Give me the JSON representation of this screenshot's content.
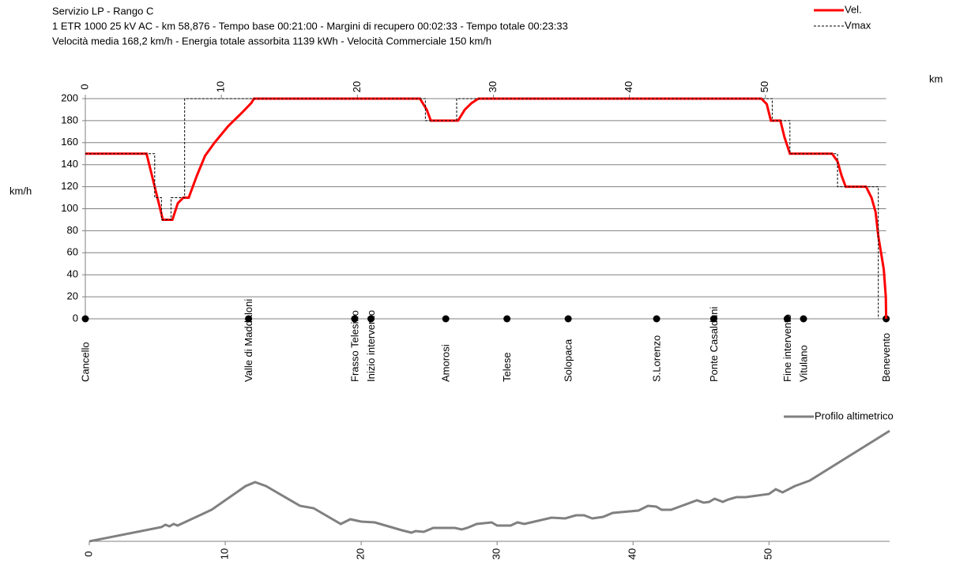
{
  "chart_data": [
    {
      "type": "line",
      "title": "Servizio LP - Rango C",
      "subtitle": [
        "1 ETR 1000 25 kV AC  -  km 58,876  -  Tempo base 00:21:00  -  Margini di recupero  00:02:33  -  Tempo totale 00:23:33",
        "Velocità media 168,2 km/h  -  Energia totale assorbita 1139  kWh  -  Velocità Commerciale 150 km/h"
      ],
      "xlabel": "km",
      "ylabel": "km/h",
      "xlim": [
        0,
        58.876
      ],
      "xticks": [
        0,
        10,
        20,
        30,
        40,
        50
      ],
      "ylim": [
        0,
        200
      ],
      "yticks": [
        0,
        20,
        40,
        60,
        80,
        100,
        120,
        140,
        160,
        180,
        200
      ],
      "grid": true,
      "legend": "top-right",
      "series": [
        {
          "name": "Vel.",
          "color": "#ff0000",
          "style": "solid",
          "x": [
            0,
            4.5,
            4.9,
            5.3,
            5.7,
            6.4,
            6.8,
            7.2,
            7.6,
            8.2,
            8.8,
            9.5,
            10.5,
            11.5,
            12.2,
            12.4,
            24.6,
            25.1,
            25.4,
            27.4,
            27.9,
            28.4,
            28.9,
            49.7,
            50.1,
            50.4,
            51.1,
            51.4,
            51.8,
            54.9,
            55.3,
            55.6,
            55.9,
            57.4,
            57.8,
            58.1,
            58.3,
            58.5,
            58.7,
            58.85,
            58.876
          ],
          "values": [
            150,
            150,
            130,
            110,
            90,
            90,
            105,
            110,
            110,
            130,
            148,
            160,
            175,
            187,
            196,
            200,
            200,
            190,
            180,
            180,
            190,
            196,
            200,
            200,
            195,
            180,
            180,
            165,
            150,
            150,
            143,
            130,
            120,
            120,
            110,
            97,
            75,
            60,
            45,
            20,
            0
          ]
        },
        {
          "name": "Vmax",
          "color": "#000000",
          "style": "dashed",
          "x": [
            0,
            5.1,
            5.1,
            5.6,
            5.6,
            6.3,
            6.3,
            7.3,
            7.3,
            25.0,
            25.0,
            27.3,
            27.3,
            50.5,
            50.5,
            51.8,
            51.8,
            55.3,
            55.3,
            58.3,
            58.3
          ],
          "values": [
            150,
            150,
            110,
            110,
            90,
            90,
            110,
            110,
            200,
            200,
            180,
            180,
            200,
            200,
            180,
            180,
            150,
            150,
            120,
            120,
            0
          ]
        }
      ],
      "stations": {
        "names": [
          "Cancello",
          "Valle di Maddaloni",
          "Frasso Telesino",
          "Inizio intervento",
          "Amorosi",
          "Telese",
          "Solopaca",
          "S.Lorenzo",
          "Ponte Casalduni",
          "Fine intervento",
          "Vitulano",
          "Benevento"
        ],
        "km": [
          0,
          12.0,
          19.8,
          21.0,
          26.5,
          31.0,
          35.5,
          42.0,
          46.2,
          51.6,
          52.8,
          58.876
        ]
      }
    },
    {
      "type": "line",
      "xlim": [
        0,
        58.876
      ],
      "xticks": [
        0,
        10,
        20,
        30,
        40,
        50
      ],
      "ylim": [
        0,
        150
      ],
      "legend": "top-right",
      "series": [
        {
          "name": "Profilo altimetrico",
          "color": "#808080",
          "style": "solid",
          "x": [
            0,
            5.3,
            5.6,
            5.9,
            6.2,
            6.5,
            7,
            9,
            11.5,
            12.2,
            13,
            15.5,
            16.5,
            18.5,
            19.2,
            20,
            21,
            22.2,
            23,
            23.7,
            24,
            24.6,
            25.3,
            26.9,
            27.4,
            27.8,
            28.5,
            29.6,
            30,
            31,
            31.5,
            32,
            32.5,
            33,
            34,
            35,
            35.8,
            36.4,
            37,
            37.8,
            38.5,
            40.4,
            41.1,
            41.7,
            42.1,
            42.8,
            44.7,
            45.2,
            45.6,
            46,
            46.6,
            47,
            47.6,
            48.3,
            50,
            50.5,
            51,
            51.9,
            53,
            58.876
          ],
          "values": [
            0,
            18,
            21,
            19,
            22,
            20,
            24,
            40,
            70,
            75,
            70,
            45,
            42,
            22,
            28,
            25,
            24,
            18,
            14,
            11,
            13,
            12,
            17,
            17,
            15,
            17,
            22,
            24,
            20,
            20,
            24,
            22,
            24,
            26,
            30,
            29,
            33,
            33,
            29,
            31,
            36,
            39,
            45,
            44,
            40,
            40,
            52,
            49,
            50,
            54,
            50,
            53,
            56,
            56,
            60,
            66,
            62,
            70,
            77,
            140
          ]
        }
      ]
    }
  ]
}
